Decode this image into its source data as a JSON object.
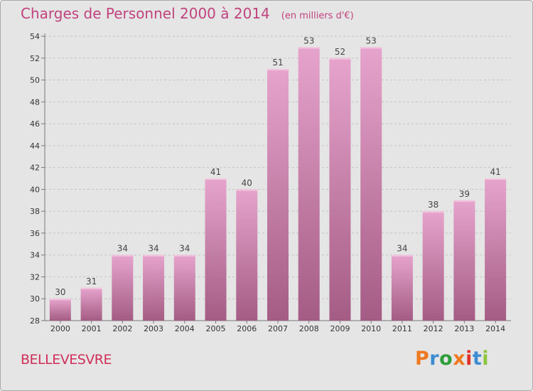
{
  "header": {
    "title": "Charges de Personnel 2000 à 2014",
    "subtitle": "(en milliers d'€)"
  },
  "footer": {
    "place": "BELLEVESVRE",
    "brand": "Proxiti",
    "brand_colors": [
      "#f0781e",
      "#3c8cd2",
      "#2e9e3a",
      "#f0781e",
      "#e0312a",
      "#3c8cd2",
      "#8cc43c"
    ]
  },
  "colors": {
    "bar_top": "#e6a4cc",
    "bar_bottom": "#a45c84",
    "title": "#c0437e",
    "background": "#e5e5e5"
  },
  "chart_data": {
    "type": "bar",
    "categories": [
      "2000",
      "2001",
      "2002",
      "2003",
      "2004",
      "2005",
      "2006",
      "2007",
      "2008",
      "2009",
      "2010",
      "2011",
      "2012",
      "2013",
      "2014"
    ],
    "values": [
      30,
      31,
      34,
      34,
      34,
      41,
      40,
      51,
      53,
      52,
      53,
      34,
      38,
      39,
      41
    ],
    "ylim": [
      28,
      54
    ],
    "yticks": [
      28,
      30,
      32,
      34,
      36,
      38,
      40,
      42,
      44,
      46,
      48,
      50,
      52,
      54
    ],
    "grid": true
  }
}
